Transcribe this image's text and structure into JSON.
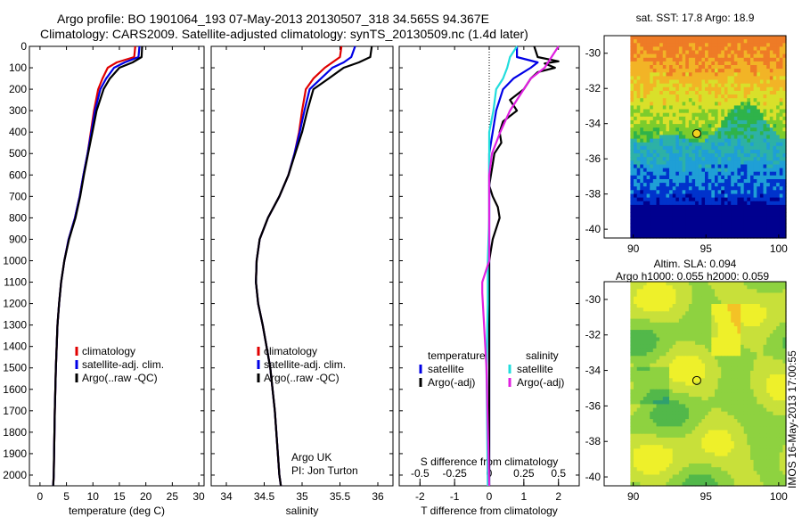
{
  "header": {
    "line1": "Argo profile: BO 1901064_193 07-May-2013 20130507_318 34.565S 94.367E",
    "line2": "Climatology: CARS2009. Satellite-adjusted climatology: synTS_20130509.nc (1.4d later)"
  },
  "colors": {
    "climatology": "#e00000",
    "satellite_adj_clim": "#0000e6",
    "argo": "#000000",
    "satellite_T": "#0000e6",
    "argo_adj_T": "#000000",
    "satellite_S": "#22dddd",
    "argo_adj_S": "#e020e0"
  },
  "chart_data": [
    {
      "type": "line",
      "panel": "temperature",
      "xlabel": "temperature (deg C)",
      "ylabel": "",
      "xlim": [
        -2,
        31
      ],
      "ylim": [
        2050,
        0
      ],
      "xticks": [
        0,
        5,
        10,
        15,
        20,
        25,
        30
      ],
      "yticks": [
        0,
        100,
        200,
        300,
        400,
        500,
        600,
        700,
        800,
        900,
        1000,
        1100,
        1200,
        1300,
        1400,
        1500,
        1600,
        1700,
        1800,
        1900,
        2000
      ],
      "legend": [
        "climatology",
        "satellite-adj. clim.",
        "Argo(..raw -QC)"
      ],
      "legend_position": "bottom-right",
      "series": [
        {
          "name": "climatology",
          "y": [
            0,
            50,
            75,
            100,
            150,
            200,
            300,
            400,
            500,
            600,
            700,
            800,
            900,
            1000,
            1100,
            1200,
            1300,
            1500,
            1700,
            2000,
            2050
          ],
          "x": [
            18.0,
            17.8,
            14.5,
            12.8,
            11.8,
            11.0,
            10.2,
            9.6,
            9.0,
            8.2,
            7.5,
            6.6,
            5.4,
            4.6,
            4.0,
            3.6,
            3.3,
            3.0,
            2.8,
            2.6,
            2.5
          ]
        },
        {
          "name": "satellite-adj. clim.",
          "y": [
            0,
            50,
            75,
            100,
            150,
            200,
            300,
            400,
            500,
            600,
            700,
            800,
            900,
            1000,
            1100,
            1200,
            1300,
            1500,
            1700,
            2000,
            2050
          ],
          "x": [
            18.8,
            18.6,
            16.0,
            14.0,
            12.5,
            11.4,
            10.4,
            9.7,
            9.0,
            8.2,
            7.5,
            6.6,
            5.4,
            4.6,
            4.0,
            3.6,
            3.3,
            3.0,
            2.8,
            2.6,
            2.5
          ]
        },
        {
          "name": "Argo(..raw -QC)",
          "y": [
            0,
            50,
            75,
            100,
            150,
            200,
            300,
            400,
            500,
            600,
            700,
            800,
            900,
            1000,
            1100,
            1200,
            1300,
            1500,
            1700,
            2000,
            2050
          ],
          "x": [
            19.3,
            19.2,
            17.5,
            15.0,
            13.2,
            12.0,
            10.7,
            9.9,
            9.1,
            8.3,
            7.6,
            6.7,
            5.5,
            4.6,
            4.0,
            3.6,
            3.3,
            3.0,
            2.8,
            2.6,
            2.5
          ]
        }
      ]
    },
    {
      "type": "line",
      "panel": "salinity",
      "xlabel": "salinity",
      "xlim": [
        33.8,
        36.2
      ],
      "ylim": [
        2050,
        0
      ],
      "xticks": [
        34,
        34.5,
        35,
        35.5,
        36
      ],
      "legend": [
        "climatology",
        "satellite-adj. clim.",
        "Argo(..raw -QC)"
      ],
      "legend_position": "bottom-right",
      "annotation": [
        "Argo UK",
        "PI: Jon Turton"
      ],
      "series": [
        {
          "name": "climatology",
          "y": [
            0,
            50,
            75,
            100,
            150,
            200,
            300,
            400,
            500,
            600,
            700,
            800,
            900,
            1000,
            1100,
            1200,
            1300,
            1400,
            1500,
            1700,
            2000,
            2050
          ],
          "x": [
            35.52,
            35.5,
            35.4,
            35.3,
            35.15,
            35.05,
            35.0,
            34.96,
            34.9,
            34.82,
            34.7,
            34.55,
            34.44,
            34.4,
            34.39,
            34.42,
            34.48,
            34.53,
            34.58,
            34.64,
            34.7,
            34.72
          ]
        },
        {
          "name": "satellite-adj. clim.",
          "y": [
            0,
            50,
            75,
            100,
            150,
            200,
            300,
            400,
            500,
            600,
            700,
            800,
            900,
            1000,
            1100,
            1200,
            1300,
            1400,
            1500,
            1700,
            2000,
            2050
          ],
          "x": [
            35.7,
            35.65,
            35.55,
            35.4,
            35.25,
            35.1,
            35.03,
            34.97,
            34.9,
            34.82,
            34.7,
            34.55,
            34.44,
            34.4,
            34.39,
            34.42,
            34.48,
            34.53,
            34.58,
            34.64,
            34.7,
            34.72
          ]
        },
        {
          "name": "Argo(..raw -QC)",
          "y": [
            0,
            50,
            75,
            100,
            150,
            200,
            300,
            400,
            500,
            600,
            700,
            800,
            900,
            1000,
            1100,
            1200,
            1300,
            1400,
            1500,
            1700,
            2000,
            2050
          ],
          "x": [
            35.92,
            35.9,
            35.75,
            35.55,
            35.35,
            35.15,
            35.07,
            35.0,
            34.91,
            34.82,
            34.7,
            34.55,
            34.44,
            34.4,
            34.39,
            34.42,
            34.48,
            34.53,
            34.58,
            34.64,
            34.7,
            34.72
          ]
        }
      ]
    },
    {
      "type": "line",
      "panel": "difference",
      "xlabel": "T difference from climatology",
      "x2label": "S difference from climatology",
      "xlim": [
        -2.6,
        2.6
      ],
      "ylim": [
        2050,
        0
      ],
      "xticks": [
        -2,
        -1,
        0,
        1,
        2
      ],
      "x2ticks": [
        -0.5,
        -0.25,
        0,
        0.25,
        0.5
      ],
      "legend_groups": {
        "temperature": [
          "satellite",
          "Argo(-adj)"
        ],
        "salinity": [
          "satellite",
          "Argo(-adj)"
        ]
      },
      "legend_position": "bottom",
      "series": [
        {
          "name": "satellite",
          "kind": "T",
          "y": [
            0,
            50,
            75,
            100,
            150,
            200,
            300,
            400,
            500,
            600,
            700,
            800,
            1000,
            1200,
            1500,
            2050
          ],
          "x": [
            0.8,
            0.8,
            1.4,
            1.2,
            0.7,
            0.4,
            0.2,
            0.1,
            0.0,
            0.0,
            0.0,
            0.0,
            0.0,
            0.0,
            0.0,
            0.0
          ]
        },
        {
          "name": "Argo(-adj)",
          "kind": "T",
          "y": [
            0,
            50,
            70,
            80,
            100,
            120,
            150,
            200,
            250,
            300,
            350,
            400,
            450,
            500,
            550,
            600,
            650,
            700,
            750,
            800,
            850,
            900,
            950,
            1000,
            1100,
            1200,
            1500,
            2050
          ],
          "x": [
            1.3,
            1.4,
            2.0,
            1.6,
            1.9,
            1.4,
            1.2,
            1.0,
            0.6,
            0.8,
            0.4,
            0.3,
            0.35,
            0.15,
            0.1,
            0.05,
            0.0,
            0.1,
            0.25,
            0.3,
            0.2,
            0.1,
            0.05,
            0.0,
            0.0,
            0.0,
            0.0,
            0.0
          ]
        },
        {
          "name": "satellite",
          "kind": "S",
          "y": [
            0,
            50,
            100,
            150,
            200,
            300,
            400,
            600,
            800,
            1000,
            1200,
            1500,
            2050
          ],
          "x": [
            0.2,
            0.15,
            0.13,
            0.1,
            0.05,
            0.03,
            0.0,
            0.0,
            0.0,
            -0.01,
            -0.01,
            -0.02,
            -0.01
          ]
        },
        {
          "name": "Argo(-adj)",
          "kind": "S",
          "y": [
            0,
            50,
            100,
            150,
            200,
            300,
            400,
            500,
            600,
            800,
            1000,
            1100,
            1150,
            1500,
            2050
          ],
          "x": [
            0.5,
            0.45,
            0.4,
            0.3,
            0.25,
            0.15,
            0.08,
            0.02,
            0.0,
            0.0,
            0.0,
            -0.05,
            -0.05,
            -0.02,
            0.0
          ]
        }
      ]
    },
    {
      "type": "heatmap",
      "panel": "sst-map",
      "title": "sat. SST: 17.8  Argo: 18.9",
      "xlim": [
        88,
        100.5
      ],
      "ylim": [
        -40.5,
        -29
      ],
      "xticks": [
        90,
        95,
        100
      ],
      "yticks": [
        -30,
        -32,
        -34,
        -36,
        -38,
        -40
      ],
      "marker": {
        "lon": 94.367,
        "lat": -34.565
      },
      "colorscale": [
        "#00008f",
        "#0033cc",
        "#1f9fd6",
        "#2db1a6",
        "#2fb34a",
        "#7ccc2c",
        "#d9e02a",
        "#f2b426",
        "#ee7b26"
      ]
    },
    {
      "type": "heatmap",
      "panel": "sla-map",
      "title": "Altim. SLA: 0.094",
      "subtitle": "Argo h1000: 0.055  h2000: 0.059",
      "xlim": [
        88,
        100.5
      ],
      "ylim": [
        -40.5,
        -29
      ],
      "xticks": [
        90,
        95,
        100
      ],
      "yticks": [
        -30,
        -32,
        -34,
        -36,
        -38,
        -40
      ],
      "marker": {
        "lon": 94.367,
        "lat": -34.565
      },
      "colorscale": [
        "#2fa06e",
        "#52b84a",
        "#8ed240",
        "#c8e03a",
        "#eef02a",
        "#f4c226"
      ]
    }
  ],
  "side_text": "IMOS 16-May-2013 17:00:55"
}
